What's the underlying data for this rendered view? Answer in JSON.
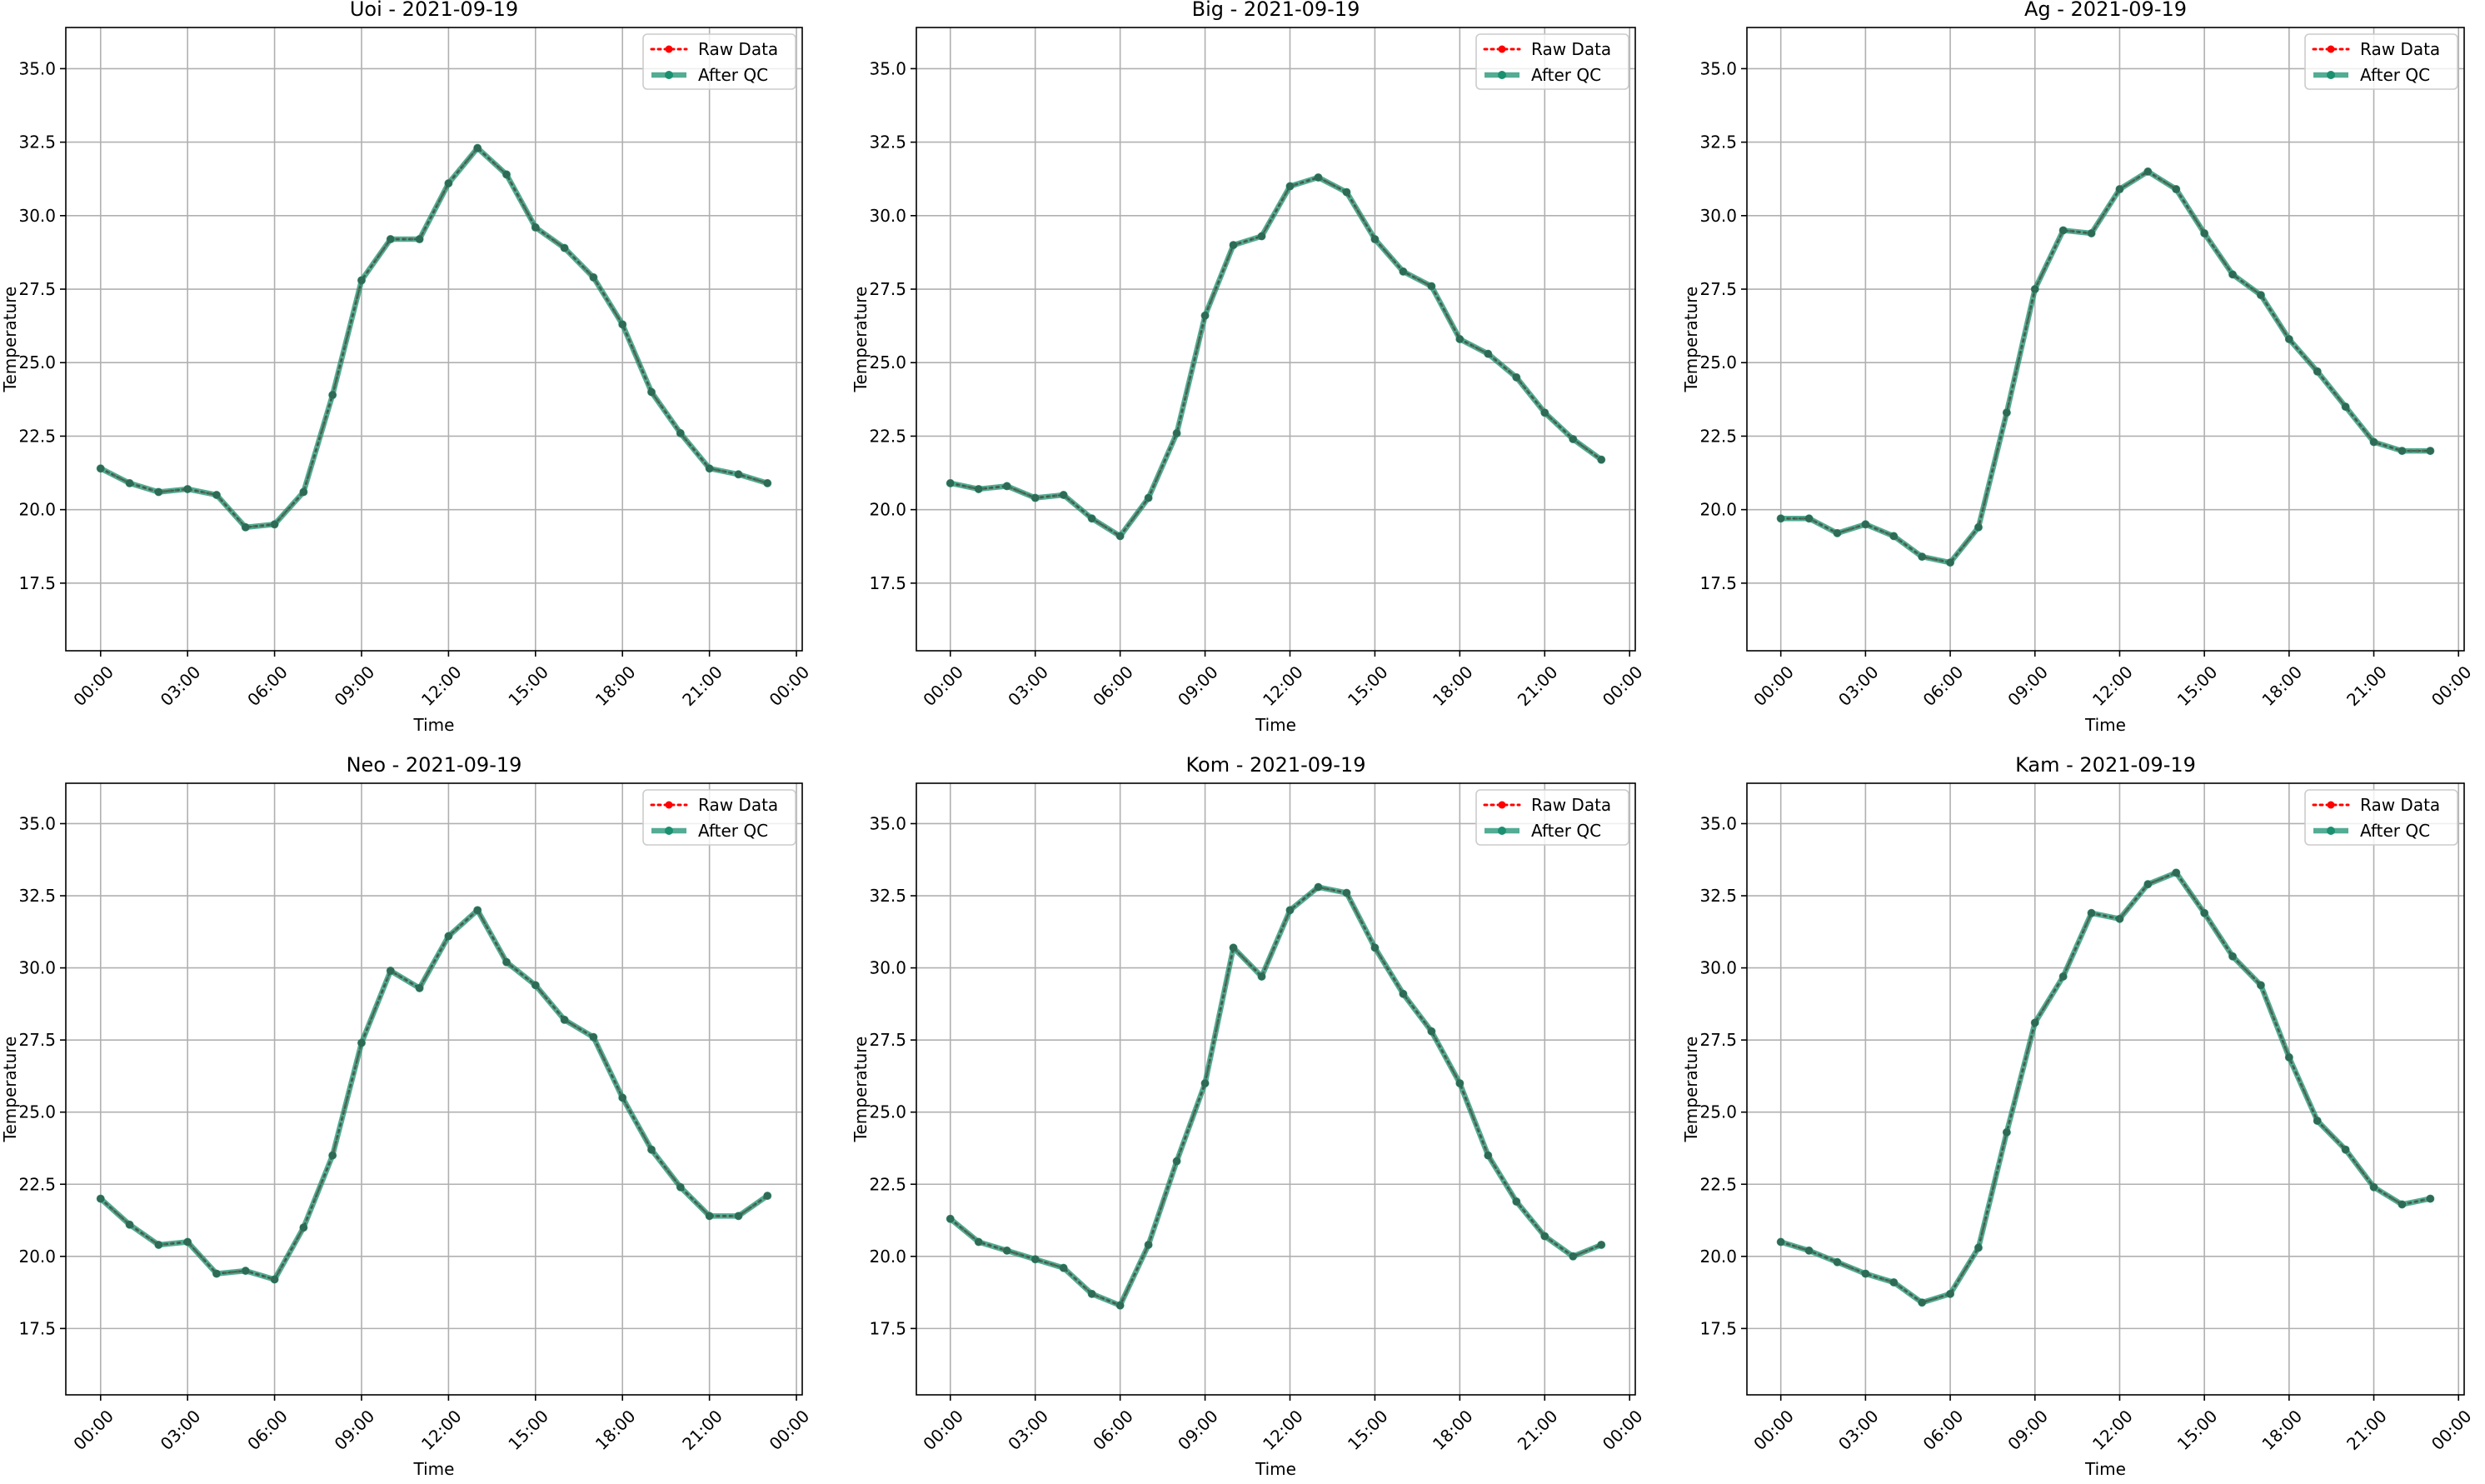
{
  "chart_data": [
    {
      "type": "line",
      "title": "Uoi - 2021-09-19",
      "xlabel": "Time",
      "ylabel": "Temperature",
      "x_ticks": [
        "00:00",
        "03:00",
        "06:00",
        "09:00",
        "12:00",
        "15:00",
        "18:00",
        "21:00",
        "00:00"
      ],
      "y_ticks": [
        "17.5",
        "20.0",
        "22.5",
        "25.0",
        "27.5",
        "30.0",
        "32.5",
        "35.0"
      ],
      "xlim": [
        -1.2,
        24.2
      ],
      "ylim": [
        15.2,
        36.4
      ],
      "grid": true,
      "legend_position": "top-right",
      "x": [
        0,
        1,
        2,
        3,
        4,
        5,
        6,
        7,
        8,
        9,
        10,
        11,
        12,
        13,
        14,
        15,
        16,
        17,
        18,
        19,
        20,
        21,
        22,
        23
      ],
      "series": [
        {
          "name": "Raw Data",
          "color": "#ff0000",
          "style": "dotted",
          "values": [
            21.4,
            20.9,
            20.6,
            20.7,
            20.5,
            19.4,
            19.5,
            20.6,
            23.9,
            27.8,
            29.2,
            29.2,
            31.1,
            32.3,
            31.4,
            29.6,
            28.9,
            27.9,
            26.3,
            24.0,
            22.6,
            21.4,
            21.2,
            20.9
          ]
        },
        {
          "name": "After QC",
          "color": "#1a9070",
          "style": "solid",
          "values": [
            21.4,
            20.9,
            20.6,
            20.7,
            20.5,
            19.4,
            19.5,
            20.6,
            23.9,
            27.8,
            29.2,
            29.2,
            31.1,
            32.3,
            31.4,
            29.6,
            28.9,
            27.9,
            26.3,
            24.0,
            22.6,
            21.4,
            21.2,
            20.9
          ]
        }
      ]
    },
    {
      "type": "line",
      "title": "Big - 2021-09-19",
      "xlabel": "Time",
      "ylabel": "Temperature",
      "x_ticks": [
        "00:00",
        "03:00",
        "06:00",
        "09:00",
        "12:00",
        "15:00",
        "18:00",
        "21:00",
        "00:00"
      ],
      "y_ticks": [
        "17.5",
        "20.0",
        "22.5",
        "25.0",
        "27.5",
        "30.0",
        "32.5",
        "35.0"
      ],
      "xlim": [
        -1.2,
        24.2
      ],
      "ylim": [
        15.2,
        36.4
      ],
      "grid": true,
      "legend_position": "top-right",
      "x": [
        0,
        1,
        2,
        3,
        4,
        5,
        6,
        7,
        8,
        9,
        10,
        11,
        12,
        13,
        14,
        15,
        16,
        17,
        18,
        19,
        20,
        21,
        22,
        23
      ],
      "series": [
        {
          "name": "Raw Data",
          "color": "#ff0000",
          "style": "dotted",
          "values": [
            20.9,
            20.7,
            20.8,
            20.4,
            20.5,
            19.7,
            19.1,
            20.4,
            22.6,
            26.6,
            29.0,
            29.3,
            31.0,
            31.3,
            30.8,
            29.2,
            28.1,
            27.6,
            25.8,
            25.3,
            24.5,
            23.3,
            22.4,
            21.7
          ]
        },
        {
          "name": "After QC",
          "color": "#1a9070",
          "style": "solid",
          "values": [
            20.9,
            20.7,
            20.8,
            20.4,
            20.5,
            19.7,
            19.1,
            20.4,
            22.6,
            26.6,
            29.0,
            29.3,
            31.0,
            31.3,
            30.8,
            29.2,
            28.1,
            27.6,
            25.8,
            25.3,
            24.5,
            23.3,
            22.4,
            21.7
          ]
        }
      ]
    },
    {
      "type": "line",
      "title": "Ag - 2021-09-19",
      "xlabel": "Time",
      "ylabel": "Temperature",
      "x_ticks": [
        "00:00",
        "03:00",
        "06:00",
        "09:00",
        "12:00",
        "15:00",
        "18:00",
        "21:00",
        "00:00"
      ],
      "y_ticks": [
        "17.5",
        "20.0",
        "22.5",
        "25.0",
        "27.5",
        "30.0",
        "32.5",
        "35.0"
      ],
      "xlim": [
        -1.2,
        24.2
      ],
      "ylim": [
        15.2,
        36.4
      ],
      "grid": true,
      "legend_position": "top-right",
      "x": [
        0,
        1,
        2,
        3,
        4,
        5,
        6,
        7,
        8,
        9,
        10,
        11,
        12,
        13,
        14,
        15,
        16,
        17,
        18,
        19,
        20,
        21,
        22,
        23
      ],
      "series": [
        {
          "name": "Raw Data",
          "color": "#ff0000",
          "style": "dotted",
          "values": [
            19.7,
            19.7,
            19.2,
            19.5,
            19.1,
            18.4,
            18.2,
            19.4,
            23.3,
            27.5,
            29.5,
            29.4,
            30.9,
            31.5,
            30.9,
            29.4,
            28.0,
            27.3,
            25.8,
            24.7,
            23.5,
            22.3,
            22.0,
            22.0
          ]
        },
        {
          "name": "After QC",
          "color": "#1a9070",
          "style": "solid",
          "values": [
            19.7,
            19.7,
            19.2,
            19.5,
            19.1,
            18.4,
            18.2,
            19.4,
            23.3,
            27.5,
            29.5,
            29.4,
            30.9,
            31.5,
            30.9,
            29.4,
            28.0,
            27.3,
            25.8,
            24.7,
            23.5,
            22.3,
            22.0,
            22.0
          ]
        }
      ]
    },
    {
      "type": "line",
      "title": "Neo - 2021-09-19",
      "xlabel": "Time",
      "ylabel": "Temperature",
      "x_ticks": [
        "00:00",
        "03:00",
        "06:00",
        "09:00",
        "12:00",
        "15:00",
        "18:00",
        "21:00",
        "00:00"
      ],
      "y_ticks": [
        "17.5",
        "20.0",
        "22.5",
        "25.0",
        "27.5",
        "30.0",
        "32.5",
        "35.0"
      ],
      "xlim": [
        -1.2,
        24.2
      ],
      "ylim": [
        15.2,
        36.4
      ],
      "grid": true,
      "legend_position": "top-right",
      "x": [
        0,
        1,
        2,
        3,
        4,
        5,
        6,
        7,
        8,
        9,
        10,
        11,
        12,
        13,
        14,
        15,
        16,
        17,
        18,
        19,
        20,
        21,
        22,
        23
      ],
      "series": [
        {
          "name": "Raw Data",
          "color": "#ff0000",
          "style": "dotted",
          "values": [
            22.0,
            21.1,
            20.4,
            20.5,
            19.4,
            19.5,
            19.2,
            21.0,
            23.5,
            27.4,
            29.9,
            29.3,
            31.1,
            32.0,
            30.2,
            29.4,
            28.2,
            27.6,
            25.5,
            23.7,
            22.4,
            21.4,
            21.4,
            22.1
          ]
        },
        {
          "name": "After QC",
          "color": "#1a9070",
          "style": "solid",
          "values": [
            22.0,
            21.1,
            20.4,
            20.5,
            19.4,
            19.5,
            19.2,
            21.0,
            23.5,
            27.4,
            29.9,
            29.3,
            31.1,
            32.0,
            30.2,
            29.4,
            28.2,
            27.6,
            25.5,
            23.7,
            22.4,
            21.4,
            21.4,
            22.1
          ]
        }
      ]
    },
    {
      "type": "line",
      "title": "Kom - 2021-09-19",
      "xlabel": "Time",
      "ylabel": "Temperature",
      "x_ticks": [
        "00:00",
        "03:00",
        "06:00",
        "09:00",
        "12:00",
        "15:00",
        "18:00",
        "21:00",
        "00:00"
      ],
      "y_ticks": [
        "17.5",
        "20.0",
        "22.5",
        "25.0",
        "27.5",
        "30.0",
        "32.5",
        "35.0"
      ],
      "xlim": [
        -1.2,
        24.2
      ],
      "ylim": [
        15.2,
        36.4
      ],
      "grid": true,
      "legend_position": "top-right",
      "x": [
        0,
        1,
        2,
        3,
        4,
        5,
        6,
        7,
        8,
        9,
        10,
        11,
        12,
        13,
        14,
        15,
        16,
        17,
        18,
        19,
        20,
        21,
        22,
        23
      ],
      "series": [
        {
          "name": "Raw Data",
          "color": "#ff0000",
          "style": "dotted",
          "values": [
            21.3,
            20.5,
            20.2,
            19.9,
            19.6,
            18.7,
            18.3,
            20.4,
            23.3,
            26.0,
            30.7,
            29.7,
            32.0,
            32.8,
            32.6,
            30.7,
            29.1,
            27.8,
            26.0,
            23.5,
            21.9,
            20.7,
            20.0,
            20.4
          ]
        },
        {
          "name": "After QC",
          "color": "#1a9070",
          "style": "solid",
          "values": [
            21.3,
            20.5,
            20.2,
            19.9,
            19.6,
            18.7,
            18.3,
            20.4,
            23.3,
            26.0,
            30.7,
            29.7,
            32.0,
            32.8,
            32.6,
            30.7,
            29.1,
            27.8,
            26.0,
            23.5,
            21.9,
            20.7,
            20.0,
            20.4
          ]
        }
      ]
    },
    {
      "type": "line",
      "title": "Kam - 2021-09-19",
      "xlabel": "Time",
      "ylabel": "Temperature",
      "x_ticks": [
        "00:00",
        "03:00",
        "06:00",
        "09:00",
        "12:00",
        "15:00",
        "18:00",
        "21:00",
        "00:00"
      ],
      "y_ticks": [
        "17.5",
        "20.0",
        "22.5",
        "25.0",
        "27.5",
        "30.0",
        "32.5",
        "35.0"
      ],
      "xlim": [
        -1.2,
        24.2
      ],
      "ylim": [
        15.2,
        36.4
      ],
      "grid": true,
      "legend_position": "top-right",
      "x": [
        0,
        1,
        2,
        3,
        4,
        5,
        6,
        7,
        8,
        9,
        10,
        11,
        12,
        13,
        14,
        15,
        16,
        17,
        18,
        19,
        20,
        21,
        22,
        23
      ],
      "series": [
        {
          "name": "Raw Data",
          "color": "#ff0000",
          "style": "dotted",
          "values": [
            20.5,
            20.2,
            19.8,
            19.4,
            19.1,
            18.4,
            18.7,
            20.3,
            24.3,
            28.1,
            29.7,
            31.9,
            31.7,
            32.9,
            33.3,
            31.9,
            30.4,
            29.4,
            26.9,
            24.7,
            23.7,
            22.4,
            21.8,
            22.0
          ]
        },
        {
          "name": "After QC",
          "color": "#1a9070",
          "style": "solid",
          "values": [
            20.5,
            20.2,
            19.8,
            19.4,
            19.1,
            18.4,
            18.7,
            20.3,
            24.3,
            28.1,
            29.7,
            31.9,
            31.7,
            32.9,
            33.3,
            31.9,
            30.4,
            29.4,
            26.9,
            24.7,
            23.7,
            22.4,
            21.8,
            22.0
          ]
        }
      ]
    }
  ]
}
